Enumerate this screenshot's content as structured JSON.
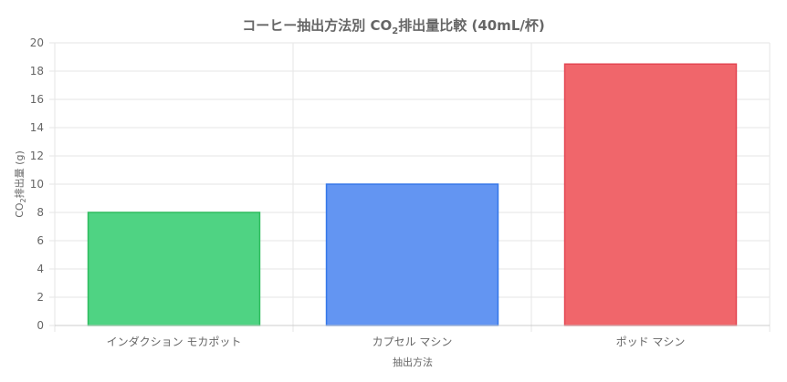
{
  "chart_data": {
    "type": "bar",
    "title_parts": [
      "コーヒー抽出方法別 CO",
      "2",
      "排出量比較 (40mL/杯)"
    ],
    "ylabel_parts": [
      "CO",
      "2",
      "排出量 (g)"
    ],
    "xlabel": "抽出方法",
    "categories": [
      "インダクション モカポット",
      "カプセル マシン",
      "ポッド マシン"
    ],
    "values": [
      8,
      10,
      18.5
    ],
    "ylim": [
      0,
      20
    ],
    "yticks": [
      "0",
      "2",
      "4",
      "6",
      "8",
      "10",
      "12",
      "14",
      "16",
      "18",
      "20"
    ],
    "colors": {
      "fill": [
        "#4fd383",
        "#6395f2",
        "#f0666b"
      ],
      "stroke": [
        "#2ebc5e",
        "#3577e8",
        "#e34652"
      ]
    },
    "grid": true,
    "legend": "none"
  }
}
